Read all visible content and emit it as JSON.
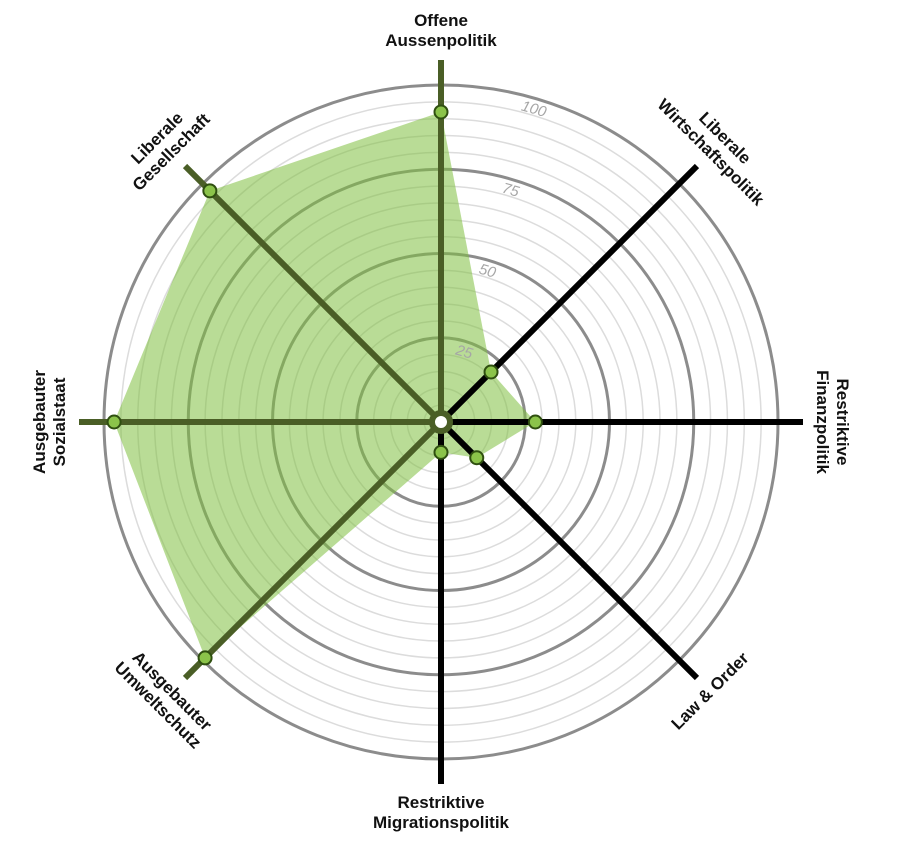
{
  "chart_data": {
    "type": "radar",
    "title": "",
    "axes": [
      {
        "label": [
          "Offene",
          "Aussenpolitik"
        ],
        "value": 92
      },
      {
        "label": [
          "Liberale",
          "Wirtschaftspolitik"
        ],
        "value": 21
      },
      {
        "label": [
          "Restriktive",
          "Finanzpolitik"
        ],
        "value": 28
      },
      {
        "label": [
          "Law & Order"
        ],
        "value": 15
      },
      {
        "label": [
          "Restriktive",
          "Migrationspolitik"
        ],
        "value": 9
      },
      {
        "label": [
          "Ausgebauter",
          "Umweltschutz"
        ],
        "value": 99
      },
      {
        "label": [
          "Ausgebauter",
          "Sozialstaat"
        ],
        "value": 97
      },
      {
        "label": [
          "Liberale",
          "Gesellschaft"
        ],
        "value": 97
      }
    ],
    "highlighted_axes": [
      "Offene Aussenpolitik",
      "Ausgebauter Umweltschutz",
      "Ausgebauter Sozialstaat",
      "Liberale Gesellschaft"
    ],
    "range": [
      0,
      100
    ],
    "ticks": [
      25,
      50,
      75,
      100
    ],
    "colors": {
      "fill": "#7fbf3f",
      "point": "#8bc34a",
      "point_stroke": "#2f4f10",
      "highlight_axis": "#4a5e26",
      "axis": "#000000",
      "major_ring": "#8c8c8c",
      "minor_ring": "#dcdcdc",
      "tick_label": "#a6a6a6"
    }
  }
}
